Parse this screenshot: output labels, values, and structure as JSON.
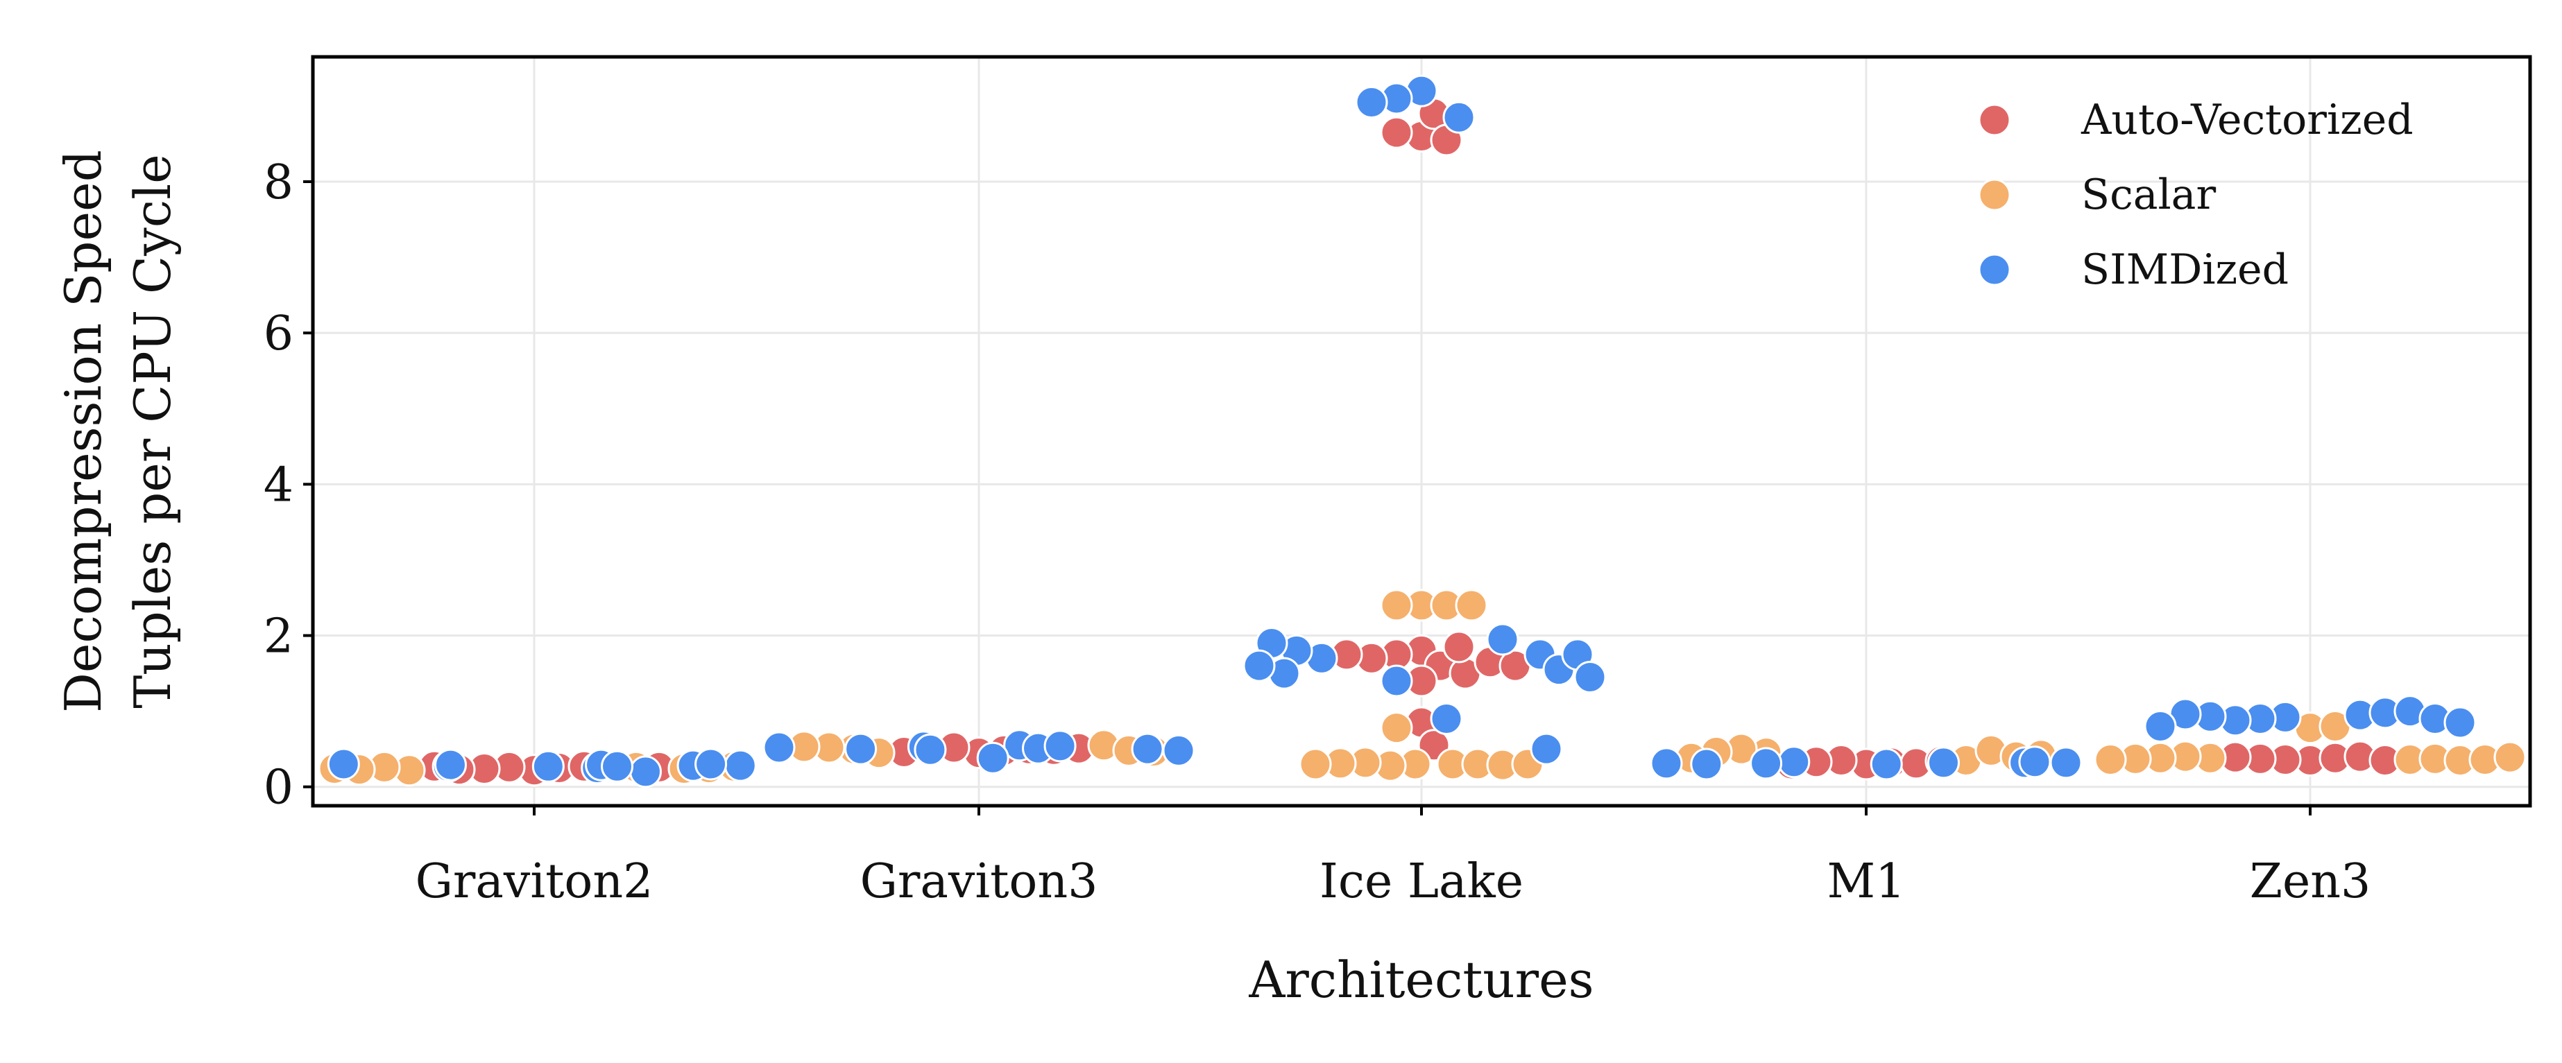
{
  "chart_data": {
    "type": "scatter",
    "subtype": "swarm",
    "title": "",
    "xlabel": "Architectures",
    "ylabel_lines": [
      "Decompression Speed",
      "Tuples per CPU Cycle"
    ],
    "categories": [
      "Graviton2",
      "Graviton3",
      "Ice Lake",
      "M1",
      "Zen3"
    ],
    "y_ticks": [
      "0",
      "2",
      "4",
      "6",
      "8"
    ],
    "ylim": [
      -0.25,
      9.65
    ],
    "grid": true,
    "legend_position": "top-right",
    "series": [
      {
        "name": "Auto-Vectorized",
        "color": "#e06666",
        "values": {
          "Graviton2": [
            0.22,
            0.25,
            0.26,
            0.27,
            0.24,
            0.28,
            0.23,
            0.25,
            0.27,
            0.26
          ],
          "Graviton3": [
            0.45,
            0.48,
            0.52,
            0.5,
            0.47,
            0.49,
            0.46,
            0.51
          ],
          "Ice Lake": [
            8.6,
            8.9,
            8.55,
            8.65,
            1.8,
            1.6,
            1.75,
            1.5,
            1.4,
            1.85,
            1.7,
            1.65,
            0.85,
            0.55,
            1.75,
            1.6
          ],
          "M1": [
            0.3,
            0.32,
            0.35,
            0.31,
            0.33,
            0.34,
            0.3
          ],
          "Zen3": [
            0.35,
            0.38,
            0.36,
            0.4,
            0.37,
            0.35,
            0.39
          ]
        }
      },
      {
        "name": "Scalar",
        "color": "#f5b06c",
        "values": {
          "Graviton2": [
            0.22,
            0.24,
            0.26,
            0.25,
            0.23,
            0.27,
            0.24,
            0.26
          ],
          "Graviton3": [
            0.45,
            0.55,
            0.5,
            0.48,
            0.52,
            0.47,
            0.53
          ],
          "Ice Lake": [
            2.4,
            2.4,
            2.4,
            2.4,
            0.3,
            0.3,
            0.28,
            0.3,
            0.32,
            0.29,
            0.31,
            0.3,
            0.78,
            0.3
          ],
          "M1": [
            0.35,
            0.45,
            0.48,
            0.5,
            0.4,
            0.46,
            0.42,
            0.38
          ],
          "Zen3": [
            0.36,
            0.38,
            0.37,
            0.4,
            0.35,
            0.38,
            0.36,
            0.37,
            0.39,
            0.36,
            0.78,
            0.8
          ]
        }
      },
      {
        "name": "SIMDized",
        "color": "#4a8ef0",
        "values": {
          "Graviton2": [
            0.27,
            0.29,
            0.3,
            0.25,
            0.28,
            0.29,
            0.27,
            0.28,
            0.3,
            0.2,
            0.27
          ],
          "Graviton3": [
            0.48,
            0.52,
            0.55,
            0.5,
            0.53,
            0.49,
            0.51,
            0.38,
            0.54,
            0.5
          ],
          "Ice Lake": [
            9.2,
            8.85,
            9.1,
            9.05,
            1.7,
            1.75,
            1.8,
            1.95,
            1.55,
            1.5,
            1.75,
            1.9,
            1.6,
            1.45,
            1.4,
            0.9,
            0.5
          ],
          "M1": [
            0.32,
            0.31,
            0.33,
            0.3,
            0.32,
            0.31,
            0.33,
            0.3,
            0.32
          ],
          "Zen3": [
            0.92,
            0.95,
            0.9,
            0.98,
            0.88,
            1.0,
            0.93,
            0.9,
            0.96,
            0.85,
            0.8
          ]
        }
      }
    ]
  }
}
